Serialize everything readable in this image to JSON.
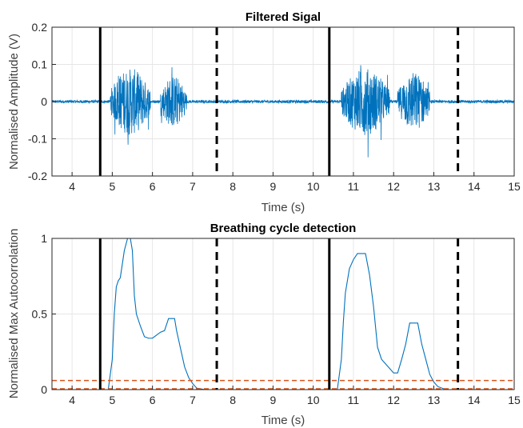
{
  "chart_data": [
    {
      "type": "line",
      "title": "Filtered Sigal",
      "xlabel": "Time (s)",
      "ylabel": "Normalised Amplitude (V)",
      "xlim": [
        3.5,
        15
      ],
      "ylim": [
        -0.2,
        0.2
      ],
      "xticks": [
        4,
        5,
        6,
        7,
        8,
        9,
        10,
        11,
        12,
        13,
        14,
        15
      ],
      "yticks": [
        -0.2,
        -0.1,
        0,
        0.1,
        0.2
      ],
      "ytick_labels": [
        "-0.2",
        "-0.1",
        "0",
        "0.1",
        "0.2"
      ],
      "grid": true,
      "series_color": "#0072BD",
      "bursts": [
        {
          "start": 4.95,
          "end": 5.95,
          "peak_amp": 0.09
        },
        {
          "start": 6.2,
          "end": 6.85,
          "peak_amp": 0.07
        },
        {
          "start": 10.7,
          "end": 11.9,
          "peak_amp": 0.09
        },
        {
          "start": 12.1,
          "end": 12.9,
          "peak_amp": 0.08
        }
      ],
      "vlines": [
        {
          "x": 4.7,
          "style": "solid",
          "color": "#000000"
        },
        {
          "x": 7.6,
          "style": "dashed",
          "color": "#000000"
        },
        {
          "x": 10.4,
          "style": "solid",
          "color": "#000000"
        },
        {
          "x": 13.6,
          "style": "dashed",
          "color": "#000000"
        }
      ]
    },
    {
      "type": "line",
      "title": "Breathing cycle detection",
      "xlabel": "Time (s)",
      "ylabel": "Normalised Max Autocorrolation",
      "xlim": [
        3.5,
        15
      ],
      "ylim": [
        0,
        1
      ],
      "xticks": [
        4,
        5,
        6,
        7,
        8,
        9,
        10,
        11,
        12,
        13,
        14,
        15
      ],
      "yticks": [
        0,
        0.5,
        1
      ],
      "ytick_labels": [
        "0",
        "0.5",
        "1"
      ],
      "grid": true,
      "series_color": "#0072BD",
      "x": [
        3.5,
        4.9,
        5.0,
        5.05,
        5.1,
        5.15,
        5.2,
        5.3,
        5.38,
        5.45,
        5.5,
        5.55,
        5.6,
        5.7,
        5.8,
        5.9,
        6.0,
        6.1,
        6.2,
        6.3,
        6.4,
        6.55,
        6.6,
        6.7,
        6.8,
        6.9,
        7.0,
        7.1,
        7.3,
        10.6,
        10.7,
        10.75,
        10.8,
        10.9,
        11.0,
        11.1,
        11.3,
        11.4,
        11.5,
        11.6,
        11.7,
        11.8,
        11.9,
        12.0,
        12.1,
        12.2,
        12.3,
        12.4,
        12.6,
        12.7,
        12.8,
        12.9,
        13.0,
        13.1,
        13.3,
        15.0
      ],
      "values": [
        0,
        0,
        0.2,
        0.5,
        0.68,
        0.72,
        0.74,
        0.92,
        1.0,
        1.0,
        0.92,
        0.62,
        0.5,
        0.42,
        0.35,
        0.34,
        0.34,
        0.36,
        0.38,
        0.39,
        0.47,
        0.47,
        0.39,
        0.27,
        0.15,
        0.08,
        0.04,
        0.01,
        0,
        0,
        0.2,
        0.45,
        0.64,
        0.8,
        0.86,
        0.9,
        0.9,
        0.76,
        0.55,
        0.28,
        0.2,
        0.17,
        0.14,
        0.11,
        0.11,
        0.2,
        0.3,
        0.44,
        0.44,
        0.3,
        0.2,
        0.1,
        0.05,
        0.02,
        0,
        0
      ],
      "hlines": [
        {
          "y": 0.06,
          "style": "dashed",
          "color": "#D95319"
        },
        {
          "y": 0.005,
          "style": "dashed",
          "color": "#D95319"
        }
      ],
      "vlines": [
        {
          "x": 4.7,
          "style": "solid",
          "color": "#000000"
        },
        {
          "x": 7.6,
          "style": "dashed",
          "color": "#000000"
        },
        {
          "x": 10.4,
          "style": "solid",
          "color": "#000000"
        },
        {
          "x": 13.6,
          "style": "dashed",
          "color": "#000000"
        }
      ]
    }
  ]
}
